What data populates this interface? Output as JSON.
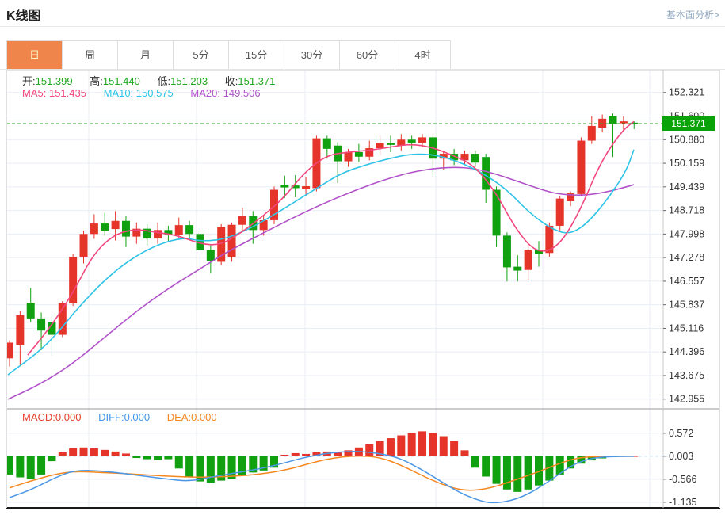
{
  "header": {
    "title": "K线图",
    "link": "基本面分析>"
  },
  "tabs": {
    "items": [
      {
        "label": "日",
        "active": true
      },
      {
        "label": "周",
        "active": false
      },
      {
        "label": "月",
        "active": false
      },
      {
        "label": "5分",
        "active": false
      },
      {
        "label": "15分",
        "active": false
      },
      {
        "label": "30分",
        "active": false
      },
      {
        "label": "60分",
        "active": false
      },
      {
        "label": "4时",
        "active": false
      }
    ]
  },
  "ohlc": {
    "open_label": "开:",
    "open": "151.399",
    "high_label": "高:",
    "high": "151.440",
    "low_label": "低:",
    "low": "151.203",
    "close_label": "收:",
    "close": "151.371"
  },
  "ma": {
    "ma5_label": "MA5:",
    "ma5": "151.435",
    "ma10_label": "MA10:",
    "ma10": "150.575",
    "ma20_label": "MA20:",
    "ma20": "149.506"
  },
  "macd_header": {
    "macd_label": "MACD:",
    "macd": "0.000",
    "diff_label": "DIFF:",
    "diff": "0.000",
    "dea_label": "DEA:",
    "dea": "0.000"
  },
  "price_badge": "151.371",
  "colors": {
    "up": "#e5352b",
    "down": "#10a010",
    "ma5": "#f2477e",
    "ma10": "#2ec3e6",
    "ma20": "#b153c8",
    "diff": "#4b96e6",
    "dea": "#f5871f",
    "current_line": "#2aa52a",
    "badge_bg": "#09a309",
    "grid": "#e9eef5",
    "axis": "#c8c8c8",
    "tick_text": "#333333",
    "tab_active_bg": "#f0854c"
  },
  "chart_data": {
    "type": "candlestick-with-macd",
    "title": "K线图",
    "period_selected": "日",
    "current_price": 151.371,
    "price_axis_ticks": [
      152.321,
      151.6,
      150.88,
      150.159,
      149.439,
      148.718,
      147.998,
      147.278,
      146.557,
      145.837,
      145.116,
      144.396,
      143.675,
      142.955
    ],
    "macd_axis_ticks": [
      0.572,
      0.003,
      -0.566,
      -1.135
    ],
    "ohlc_last": {
      "open": 151.399,
      "high": 151.44,
      "low": 151.203,
      "close": 151.371
    },
    "ma_last": {
      "ma5": 151.435,
      "ma10": 150.575,
      "ma20": 149.506
    },
    "macd_last": {
      "macd": 0.0,
      "diff": 0.0,
      "dea": 0.0
    },
    "candles": [
      [
        144.2,
        144.75,
        143.95,
        144.68
      ],
      [
        144.6,
        145.65,
        144.0,
        145.52
      ],
      [
        145.9,
        146.35,
        145.3,
        145.42
      ],
      [
        145.42,
        145.6,
        144.45,
        145.05
      ],
      [
        145.3,
        145.55,
        144.3,
        144.92
      ],
      [
        144.92,
        145.95,
        144.85,
        145.88
      ],
      [
        145.88,
        147.4,
        145.8,
        147.3
      ],
      [
        147.3,
        148.1,
        147.1,
        148.0
      ],
      [
        148.0,
        148.6,
        147.85,
        148.32
      ],
      [
        148.32,
        148.65,
        147.95,
        148.1
      ],
      [
        148.15,
        148.7,
        147.8,
        148.4
      ],
      [
        148.4,
        148.55,
        147.6,
        147.92
      ],
      [
        147.92,
        148.35,
        147.7,
        148.16
      ],
      [
        148.16,
        148.3,
        147.65,
        147.86
      ],
      [
        147.86,
        148.35,
        147.7,
        148.12
      ],
      [
        148.12,
        148.25,
        147.75,
        147.96
      ],
      [
        147.96,
        148.5,
        147.85,
        148.27
      ],
      [
        148.27,
        148.4,
        147.8,
        148.0
      ],
      [
        148.0,
        148.1,
        146.9,
        147.5
      ],
      [
        147.5,
        147.65,
        146.8,
        147.18
      ],
      [
        147.15,
        148.3,
        147.05,
        148.22
      ],
      [
        147.3,
        148.35,
        147.15,
        148.28
      ],
      [
        148.28,
        148.8,
        148.1,
        148.55
      ],
      [
        148.55,
        148.7,
        147.7,
        148.12
      ],
      [
        148.12,
        148.55,
        147.95,
        148.42
      ],
      [
        148.42,
        149.45,
        148.3,
        149.35
      ],
      [
        149.5,
        149.78,
        149.1,
        149.42
      ],
      [
        149.48,
        149.8,
        149.12,
        149.4
      ],
      [
        149.38,
        149.75,
        149.15,
        149.46
      ],
      [
        149.4,
        151.0,
        149.3,
        150.92
      ],
      [
        150.92,
        151.0,
        150.3,
        150.6
      ],
      [
        150.7,
        150.8,
        149.55,
        150.22
      ],
      [
        150.22,
        150.6,
        150.05,
        150.5
      ],
      [
        150.5,
        150.75,
        150.2,
        150.36
      ],
      [
        150.36,
        150.85,
        150.25,
        150.62
      ],
      [
        150.62,
        151.0,
        150.4,
        150.78
      ],
      [
        150.78,
        151.0,
        150.5,
        150.72
      ],
      [
        150.7,
        151.05,
        150.55,
        150.88
      ],
      [
        150.88,
        151.0,
        150.6,
        150.78
      ],
      [
        150.78,
        151.05,
        150.65,
        150.95
      ],
      [
        150.95,
        151.0,
        149.75,
        150.3
      ],
      [
        150.3,
        150.55,
        149.95,
        150.45
      ],
      [
        150.45,
        150.6,
        150.1,
        150.25
      ],
      [
        150.25,
        150.55,
        150.1,
        150.45
      ],
      [
        150.45,
        150.55,
        150.05,
        150.18
      ],
      [
        150.35,
        150.45,
        148.95,
        149.35
      ],
      [
        149.35,
        149.45,
        147.6,
        147.95
      ],
      [
        147.95,
        148.05,
        146.55,
        146.98
      ],
      [
        147.0,
        147.35,
        146.55,
        146.88
      ],
      [
        146.9,
        147.6,
        146.6,
        147.52
      ],
      [
        147.5,
        147.78,
        147.0,
        147.4
      ],
      [
        147.42,
        148.35,
        147.3,
        148.25
      ],
      [
        148.25,
        149.15,
        148.1,
        149.08
      ],
      [
        149.0,
        149.3,
        148.85,
        149.24
      ],
      [
        149.22,
        150.95,
        149.15,
        150.85
      ],
      [
        150.85,
        151.6,
        150.75,
        151.3
      ],
      [
        151.25,
        151.65,
        151.1,
        151.52
      ],
      [
        151.6,
        151.68,
        150.35,
        151.36
      ],
      [
        151.38,
        151.6,
        151.15,
        151.44
      ],
      [
        151.399,
        151.44,
        151.203,
        151.371
      ]
    ],
    "ma5_line": [
      [
        27,
        144.3
      ],
      [
        57,
        145.2
      ],
      [
        84,
        146.2
      ],
      [
        110,
        147.4
      ],
      [
        137,
        148.0
      ],
      [
        164,
        148.15
      ],
      [
        190,
        148.05
      ],
      [
        217,
        147.95
      ],
      [
        244,
        147.7
      ],
      [
        270,
        147.65
      ],
      [
        297,
        148.05
      ],
      [
        324,
        148.55
      ],
      [
        350,
        149.1
      ],
      [
        377,
        149.9
      ],
      [
        404,
        150.4
      ],
      [
        430,
        150.5
      ],
      [
        457,
        150.55
      ],
      [
        484,
        150.65
      ],
      [
        510,
        150.75
      ],
      [
        537,
        150.65
      ],
      [
        564,
        150.4
      ],
      [
        590,
        150.1
      ],
      [
        617,
        149.3
      ],
      [
        644,
        148.1
      ],
      [
        670,
        147.4
      ],
      [
        697,
        147.6
      ],
      [
        724,
        148.7
      ],
      [
        750,
        150.2
      ],
      [
        777,
        151.15
      ],
      [
        792,
        151.435
      ]
    ],
    "ma10_line": [
      [
        2,
        143.7
      ],
      [
        52,
        144.6
      ],
      [
        92,
        145.8
      ],
      [
        137,
        146.9
      ],
      [
        182,
        147.6
      ],
      [
        222,
        147.9
      ],
      [
        244,
        147.78
      ],
      [
        272,
        147.82
      ],
      [
        302,
        148.1
      ],
      [
        332,
        148.5
      ],
      [
        362,
        148.95
      ],
      [
        392,
        149.4
      ],
      [
        422,
        149.85
      ],
      [
        452,
        150.1
      ],
      [
        482,
        150.3
      ],
      [
        512,
        150.45
      ],
      [
        542,
        150.42
      ],
      [
        572,
        150.2
      ],
      [
        602,
        149.85
      ],
      [
        632,
        149.35
      ],
      [
        662,
        148.6
      ],
      [
        692,
        148.1
      ],
      [
        712,
        148.0
      ],
      [
        732,
        148.3
      ],
      [
        757,
        149.0
      ],
      [
        782,
        149.9
      ],
      [
        792,
        150.575
      ]
    ],
    "ma20_line": [
      [
        2,
        142.95
      ],
      [
        42,
        143.4
      ],
      [
        82,
        144.0
      ],
      [
        122,
        144.8
      ],
      [
        162,
        145.6
      ],
      [
        202,
        146.3
      ],
      [
        242,
        146.9
      ],
      [
        282,
        147.5
      ],
      [
        322,
        148.0
      ],
      [
        362,
        148.5
      ],
      [
        402,
        148.95
      ],
      [
        442,
        149.35
      ],
      [
        482,
        149.7
      ],
      [
        522,
        149.95
      ],
      [
        562,
        150.05
      ],
      [
        592,
        150.0
      ],
      [
        622,
        149.8
      ],
      [
        652,
        149.55
      ],
      [
        682,
        149.3
      ],
      [
        702,
        149.2
      ],
      [
        732,
        149.18
      ],
      [
        762,
        149.3
      ],
      [
        792,
        149.506
      ]
    ],
    "macd_hist": [
      -0.45,
      -0.52,
      -0.55,
      -0.45,
      -0.12,
      0.1,
      0.2,
      0.22,
      0.2,
      0.16,
      0.12,
      0.07,
      -0.04,
      -0.07,
      -0.09,
      -0.07,
      -0.3,
      -0.5,
      -0.62,
      -0.65,
      -0.6,
      -0.55,
      -0.48,
      -0.4,
      -0.35,
      -0.28,
      0.04,
      0.08,
      0.06,
      0.1,
      0.12,
      0.1,
      0.15,
      0.22,
      0.3,
      0.38,
      0.45,
      0.52,
      0.58,
      0.62,
      0.58,
      0.5,
      0.38,
      0.15,
      -0.28,
      -0.5,
      -0.68,
      -0.82,
      -0.88,
      -0.82,
      -0.72,
      -0.6,
      -0.45,
      -0.3,
      -0.18,
      -0.1,
      -0.05,
      -0.02,
      0.01,
      0.005
    ],
    "diff_line": [
      [
        4,
        -1.02
      ],
      [
        32,
        -0.82
      ],
      [
        62,
        -0.52
      ],
      [
        87,
        -0.34
      ],
      [
        122,
        -0.36
      ],
      [
        162,
        -0.46
      ],
      [
        202,
        -0.56
      ],
      [
        232,
        -0.62
      ],
      [
        262,
        -0.5
      ],
      [
        292,
        -0.4
      ],
      [
        322,
        -0.3
      ],
      [
        352,
        -0.16
      ],
      [
        377,
        -0.02
      ],
      [
        412,
        0.1
      ],
      [
        447,
        0.13
      ],
      [
        477,
        0.05
      ],
      [
        497,
        -0.05
      ],
      [
        522,
        -0.3
      ],
      [
        547,
        -0.6
      ],
      [
        572,
        -0.9
      ],
      [
        597,
        -1.1
      ],
      [
        614,
        -1.16
      ],
      [
        637,
        -1.1
      ],
      [
        657,
        -0.95
      ],
      [
        677,
        -0.72
      ],
      [
        697,
        -0.45
      ],
      [
        714,
        -0.22
      ],
      [
        732,
        -0.08
      ],
      [
        752,
        -0.01
      ],
      [
        792,
        0.003
      ]
    ],
    "dea_line": [
      [
        4,
        -0.78
      ],
      [
        32,
        -0.6
      ],
      [
        62,
        -0.44
      ],
      [
        87,
        -0.37
      ],
      [
        122,
        -0.4
      ],
      [
        162,
        -0.44
      ],
      [
        202,
        -0.49
      ],
      [
        242,
        -0.52
      ],
      [
        282,
        -0.5
      ],
      [
        322,
        -0.44
      ],
      [
        357,
        -0.32
      ],
      [
        387,
        -0.15
      ],
      [
        412,
        -0.04
      ],
      [
        442,
        0.02
      ],
      [
        472,
        -0.02
      ],
      [
        502,
        -0.25
      ],
      [
        532,
        -0.55
      ],
      [
        562,
        -0.78
      ],
      [
        582,
        -0.85
      ],
      [
        602,
        -0.82
      ],
      [
        622,
        -0.72
      ],
      [
        647,
        -0.55
      ],
      [
        672,
        -0.38
      ],
      [
        692,
        -0.22
      ],
      [
        712,
        -0.08
      ],
      [
        732,
        -0.01
      ],
      [
        762,
        0.0
      ],
      [
        792,
        0.003
      ]
    ],
    "vertical_gridlines_x": [
      104,
      240,
      377,
      542,
      677,
      812
    ],
    "legend_position": "top-left-inline",
    "grid": true
  }
}
